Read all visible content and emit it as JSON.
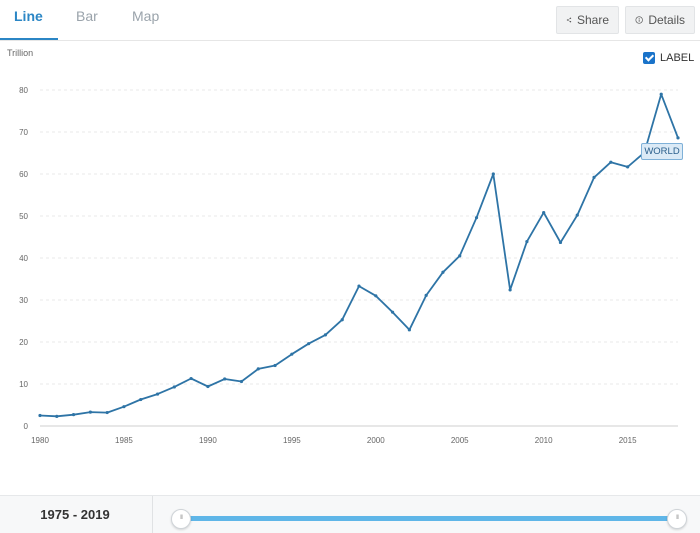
{
  "tabs": {
    "line": "Line",
    "bar": "Bar",
    "map": "Map"
  },
  "toolbar": {
    "share": "Share",
    "details": "Details"
  },
  "label_toggle": {
    "text": "LABEL",
    "checked": true
  },
  "footer": {
    "range": "1975 - 2019"
  },
  "colors": {
    "accent": "#2b86c5",
    "series": "#2e74a6",
    "slider": "#5fb6e8"
  },
  "chart_data": {
    "type": "line",
    "unit": "Trillion",
    "x": [
      1980,
      1981,
      1982,
      1983,
      1984,
      1985,
      1986,
      1987,
      1988,
      1989,
      1990,
      1991,
      1992,
      1993,
      1994,
      1995,
      1996,
      1997,
      1998,
      1999,
      2000,
      2001,
      2002,
      2003,
      2004,
      2005,
      2006,
      2007,
      2008,
      2009,
      2010,
      2011,
      2012,
      2013,
      2014,
      2015,
      2016,
      2017,
      2018
    ],
    "series": [
      {
        "name": "WORLD",
        "values": [
          2.5,
          2.3,
          2.7,
          3.3,
          3.2,
          4.6,
          6.3,
          7.6,
          9.3,
          11.3,
          9.4,
          11.2,
          10.6,
          13.6,
          14.4,
          17.1,
          19.6,
          21.7,
          25.3,
          33.3,
          31.0,
          27.1,
          22.9,
          31.1,
          36.6,
          40.5,
          49.6,
          60.0,
          32.4,
          43.9,
          50.8,
          43.7,
          50.2,
          59.2,
          62.8,
          61.7,
          65.1,
          79.0,
          68.6
        ]
      }
    ],
    "xticks": [
      1980,
      1985,
      1990,
      1995,
      2000,
      2005,
      2010,
      2015
    ],
    "yticks": [
      0,
      10,
      20,
      30,
      40,
      50,
      60,
      70,
      80
    ],
    "xlim": [
      1980,
      2018
    ],
    "ylim": [
      0,
      80
    ],
    "grid": true,
    "label_series": "WORLD"
  }
}
